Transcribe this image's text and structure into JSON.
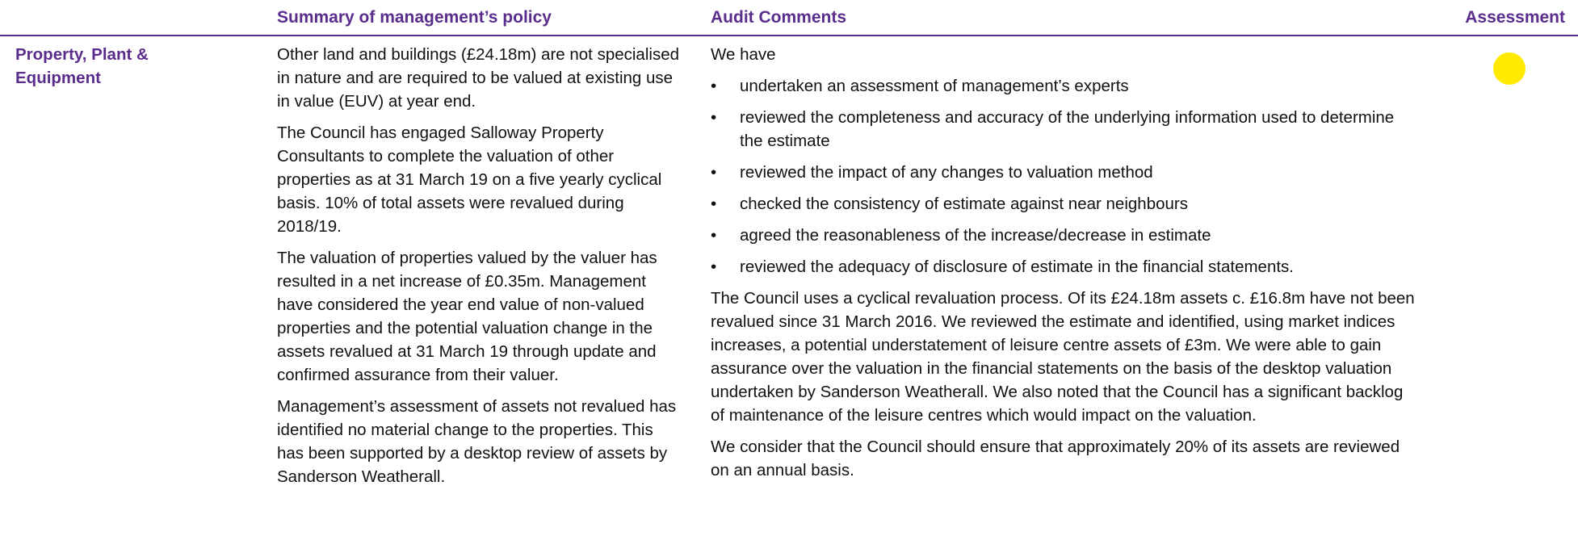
{
  "header": {
    "columns": [
      "Summary of management’s policy",
      "Audit Comments",
      "Assessment"
    ]
  },
  "rows": [
    {
      "category": "Property, Plant & Equipment",
      "policy": [
        "Other land and buildings (£24.18m) are not specialised in nature and are required to be valued at existing use in value (EUV) at year end.",
        "The Council has engaged Salloway Property Consultants to complete the valuation of other properties as at 31 March 19 on a five yearly cyclical basis. 10% of total assets were revalued during 2018/19.",
        "The valuation of properties valued by the valuer has resulted in a net increase of £0.35m. Management have considered the year end value of non-valued properties and the potential valuation change in the assets revalued at 31 March 19 through update and confirmed assurance from their valuer.",
        "Management’s assessment of assets not revalued has identified no material change to the properties. This has been supported by a desktop review of assets by Sanderson Weatherall."
      ],
      "audit_intro": "We have",
      "audit_bullets": [
        "undertaken an assessment of management’s experts",
        "reviewed the completeness and accuracy of the underlying information used to determine the estimate",
        "reviewed the impact of any changes to valuation method",
        "checked the consistency of estimate against near neighbours",
        "agreed the reasonableness of the increase/decrease in estimate",
        "reviewed the adequacy of disclosure of estimate in the financial statements."
      ],
      "audit_paragraphs": [
        "The Council uses a cyclical revaluation process. Of its £24.18m assets c. £16.8m have not been revalued since 31 March 2016. We reviewed the estimate and identified, using market indices increases, a potential understatement of leisure centre assets of £3m. We were able to gain assurance over the valuation in the financial statements on the basis of the desktop valuation undertaken by Sanderson Weatherall.  We also noted that the Council has a significant backlog of maintenance of the leisure centres which would impact on the valuation.",
        "We consider that the Council should ensure that approximately 20% of its assets are reviewed on an annual basis."
      ]
    }
  ]
}
